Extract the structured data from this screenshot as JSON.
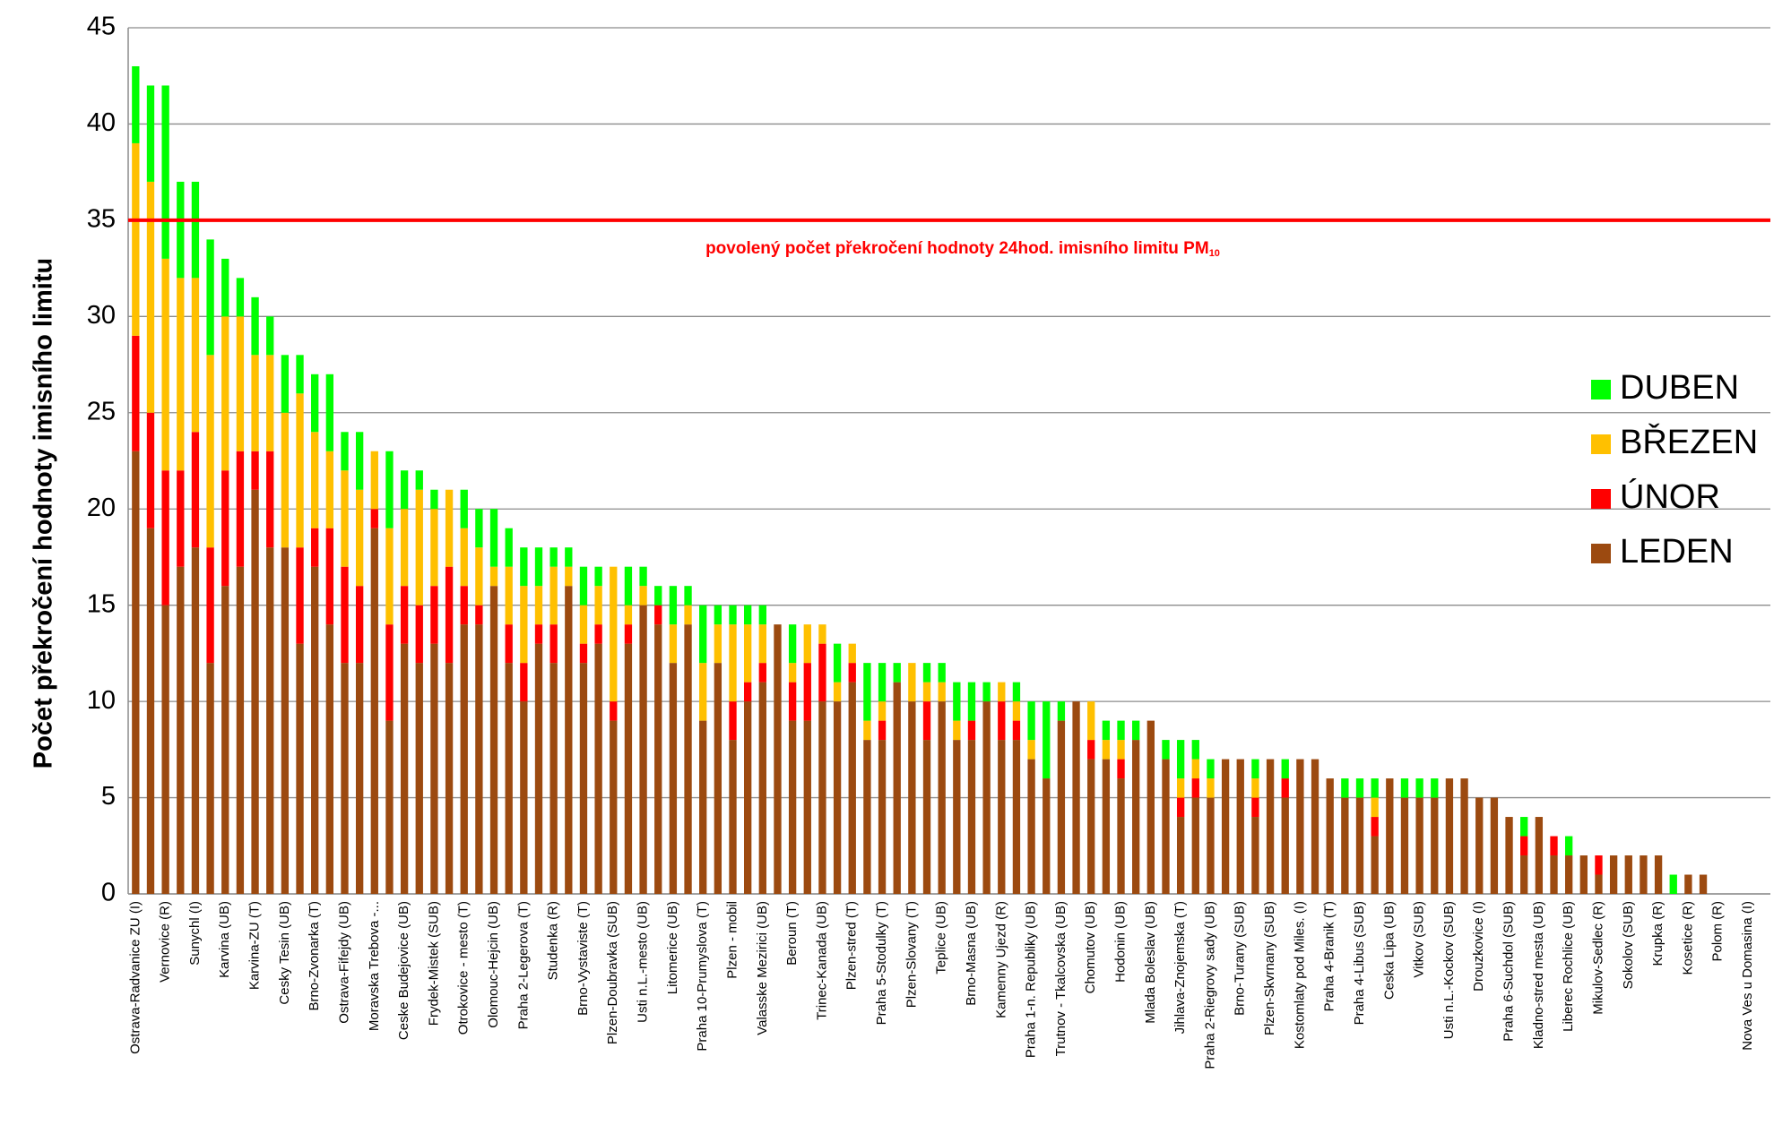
{
  "chart_data": {
    "type": "stacked_bar",
    "y_label": "Počet překročení hodnoty imisního limitu",
    "categories": [
      "Ostrava-Radvanice ZU (I)",
      null,
      "Vernovice (R)",
      null,
      "Sunychl (I)",
      null,
      "Karvina (UB)",
      null,
      "Karvina-ZU (T)",
      null,
      "Cesky Tesin (UB)",
      null,
      "Brno-Zvonarka (T)",
      null,
      "Ostrava-Fifejdy (UB)",
      null,
      "Moravska Trebova -...",
      null,
      "Ceske Budejovice (UB)",
      null,
      "Frydek-Mistek (SUB)",
      null,
      "Otrokovice - mesto (T)",
      null,
      "Olomouc-Hejcin (UB)",
      null,
      "Praha 2-Legerova (T)",
      null,
      "Studenka (R)",
      null,
      "Brno-Vystaviste (T)",
      null,
      "Plzen-Doubravka (SUB)",
      null,
      "Usti n.L.-mesto (UB)",
      null,
      "Litomerice (UB)",
      null,
      "Praha 10-Prumyslova (T)",
      null,
      "Plzen - mobil",
      null,
      "Valasske Mezirici (UB)",
      null,
      "Beroun (T)",
      null,
      "Trinec-Kanada (UB)",
      null,
      "Plzen-stred (T)",
      null,
      "Praha 5-Stodulky (T)",
      null,
      "Plzen-Slovany (T)",
      null,
      "Teplice (UB)",
      null,
      "Brno-Masna (UB)",
      null,
      "Kamenny Ujezd (R)",
      null,
      "Praha 1-n. Republiky (UB)",
      null,
      "Trutnov - Tkalcovska (UB)",
      null,
      "Chomutov (UB)",
      null,
      "Hodonin (UB)",
      null,
      "Mlada Boleslav (UB)",
      null,
      "Jihlava-Znojemska (T)",
      null,
      "Praha 2-Riegrovy sady (UB)",
      null,
      "Brno-Turany (SUB)",
      null,
      "Plzen-Skvrnany (SUB)",
      null,
      "Kostomlaty pod Miles. (I)",
      null,
      "Praha 4-Branik (T)",
      null,
      "Praha 4-Libus (SUB)",
      null,
      "Ceska Lipa (UB)",
      null,
      "Vitkov (SUB)",
      null,
      "Usti n.L.-Kockov (SUB)",
      null,
      "Drouzkovice (I)",
      null,
      "Praha 6-Suchdol (SUB)",
      null,
      "Kladno-stred mesta (UB)",
      null,
      "Liberec Rochlice (UB)",
      null,
      "Mikulov-Sedlec (R)",
      null,
      "Sokolov (SUB)",
      null,
      "Krupka (R)",
      null,
      "Kosetice (R)",
      null,
      "Polom (R)",
      null,
      "Nova Ves u Domasina (I)",
      null
    ],
    "series": [
      {
        "name": "LEDEN",
        "color": "#9c4a10",
        "values": [
          23,
          19,
          15,
          17,
          18,
          12,
          16,
          17,
          21,
          18,
          18,
          13,
          17,
          14,
          12,
          12,
          19,
          9,
          13,
          12,
          13,
          12,
          14,
          14,
          16,
          12,
          10,
          13,
          12,
          16,
          12,
          13,
          9,
          13,
          15,
          14,
          12,
          14,
          9,
          12,
          8,
          10,
          11,
          14,
          9,
          9,
          10,
          10,
          11,
          8,
          8,
          11,
          10,
          8,
          10,
          8,
          8,
          10,
          8,
          8,
          7,
          6,
          9,
          10,
          7,
          7,
          6,
          8,
          9,
          7,
          4,
          5,
          5,
          7,
          7,
          4,
          7,
          5,
          7,
          7,
          6,
          5,
          5,
          3,
          6,
          5,
          5,
          5,
          6,
          6,
          5,
          5,
          4,
          2,
          4,
          2,
          2,
          2,
          1,
          2,
          2,
          2,
          2,
          0,
          1,
          1,
          0,
          0,
          0,
          0
        ]
      },
      {
        "name": "ÚNOR",
        "color": "#ff0000",
        "values": [
          6,
          6,
          7,
          5,
          6,
          6,
          6,
          6,
          2,
          5,
          0,
          5,
          2,
          5,
          5,
          4,
          1,
          5,
          3,
          3,
          3,
          5,
          2,
          1,
          0,
          2,
          2,
          1,
          2,
          0,
          1,
          1,
          1,
          1,
          0,
          1,
          0,
          0,
          0,
          0,
          2,
          1,
          1,
          0,
          2,
          3,
          3,
          0,
          1,
          0,
          1,
          0,
          0,
          2,
          0,
          0,
          1,
          0,
          2,
          1,
          0,
          0,
          0,
          0,
          1,
          0,
          1,
          0,
          0,
          0,
          1,
          1,
          0,
          0,
          0,
          1,
          0,
          1,
          0,
          0,
          0,
          0,
          0,
          1,
          0,
          0,
          0,
          0,
          0,
          0,
          0,
          0,
          0,
          1,
          0,
          1,
          0,
          0,
          1,
          0,
          0,
          0,
          0,
          0,
          0,
          0,
          0,
          0,
          0,
          0
        ]
      },
      {
        "name": "BŘEZEN",
        "color": "#ffc000",
        "values": [
          10,
          12,
          11,
          10,
          8,
          10,
          8,
          7,
          5,
          5,
          7,
          8,
          5,
          4,
          5,
          5,
          3,
          5,
          4,
          6,
          4,
          4,
          3,
          3,
          1,
          3,
          4,
          2,
          3,
          1,
          2,
          2,
          7,
          1,
          1,
          0,
          2,
          1,
          3,
          2,
          4,
          3,
          2,
          0,
          1,
          2,
          1,
          1,
          1,
          1,
          1,
          0,
          2,
          1,
          1,
          1,
          0,
          0,
          1,
          1,
          1,
          0,
          0,
          0,
          2,
          1,
          1,
          0,
          0,
          0,
          1,
          1,
          1,
          0,
          0,
          1,
          0,
          0,
          0,
          0,
          0,
          0,
          0,
          1,
          0,
          0,
          0,
          0,
          0,
          0,
          0,
          0,
          0,
          0,
          0,
          0,
          0,
          0,
          0,
          0,
          0,
          0,
          0,
          0,
          0,
          0,
          0,
          0,
          0,
          0
        ]
      },
      {
        "name": "DUBEN",
        "color": "#00ff00",
        "values": [
          4,
          5,
          9,
          5,
          5,
          6,
          3,
          2,
          3,
          2,
          3,
          2,
          3,
          4,
          2,
          3,
          0,
          4,
          2,
          1,
          1,
          0,
          2,
          2,
          3,
          2,
          2,
          2,
          1,
          1,
          2,
          1,
          0,
          2,
          1,
          1,
          2,
          1,
          3,
          1,
          1,
          1,
          1,
          0,
          2,
          0,
          0,
          2,
          0,
          3,
          2,
          1,
          0,
          1,
          1,
          2,
          2,
          1,
          0,
          1,
          2,
          4,
          1,
          0,
          0,
          1,
          1,
          1,
          0,
          1,
          2,
          1,
          1,
          0,
          0,
          1,
          0,
          1,
          0,
          0,
          0,
          1,
          1,
          1,
          0,
          1,
          1,
          1,
          0,
          0,
          0,
          0,
          0,
          1,
          0,
          0,
          1,
          0,
          0,
          0,
          0,
          0,
          0,
          1,
          0,
          0,
          0,
          0,
          0,
          0
        ]
      }
    ],
    "ylim": [
      0,
      45
    ],
    "yticks": [
      0,
      5,
      10,
      15,
      20,
      25,
      30,
      35,
      40,
      45
    ],
    "grid": true,
    "legend": "right",
    "ref_line": {
      "value": 35,
      "color": "#ff0000",
      "label": "povolený počet překročení hodnoty 24hod. imisního limitu PM",
      "label_sub": "10"
    }
  }
}
